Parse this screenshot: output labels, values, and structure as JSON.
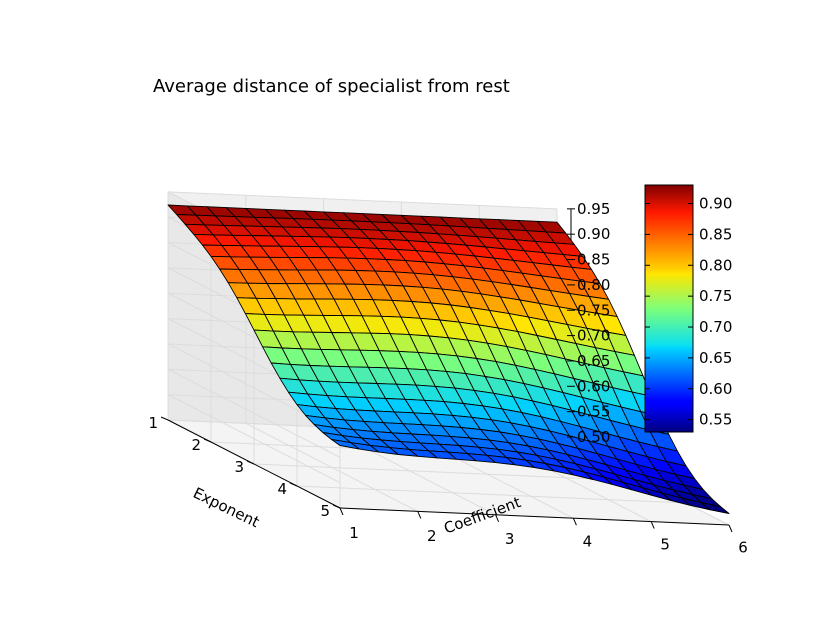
{
  "chart_data": {
    "type": "surface",
    "title": "Average distance of specialist from rest",
    "xlabel": "Exponent",
    "ylabel": "Coefficient",
    "zlabel": "",
    "x_range": [
      1,
      5
    ],
    "y_range": [
      1,
      6
    ],
    "zlim": [
      0.5,
      0.95
    ],
    "x_ticks": [
      "1",
      "2",
      "3",
      "4",
      "5"
    ],
    "y_ticks": [
      "1",
      "2",
      "3",
      "4",
      "5",
      "6"
    ],
    "z_ticks": [
      "0.50",
      "0.55",
      "0.60",
      "0.65",
      "0.70",
      "0.75",
      "0.80",
      "0.85",
      "0.90",
      "0.95"
    ],
    "grid": true,
    "colormap": "jet",
    "colorbar": {
      "range": [
        0.53,
        0.93
      ],
      "ticks": [
        "0.55",
        "0.60",
        "0.65",
        "0.70",
        "0.75",
        "0.80",
        "0.85",
        "0.90"
      ]
    },
    "surface_samples": [
      {
        "exponent": 1,
        "coefficient": 1,
        "value": 0.93
      },
      {
        "exponent": 1,
        "coefficient": 3.5,
        "value": 0.92
      },
      {
        "exponent": 1,
        "coefficient": 6,
        "value": 0.93
      },
      {
        "exponent": 3,
        "coefficient": 1,
        "value": 0.78
      },
      {
        "exponent": 3,
        "coefficient": 3.5,
        "value": 0.74
      },
      {
        "exponent": 3,
        "coefficient": 6,
        "value": 0.66
      },
      {
        "exponent": 5,
        "coefficient": 1,
        "value": 0.63
      },
      {
        "exponent": 5,
        "coefficient": 3.5,
        "value": 0.57
      },
      {
        "exponent": 5,
        "coefficient": 6,
        "value": 0.53
      }
    ]
  }
}
